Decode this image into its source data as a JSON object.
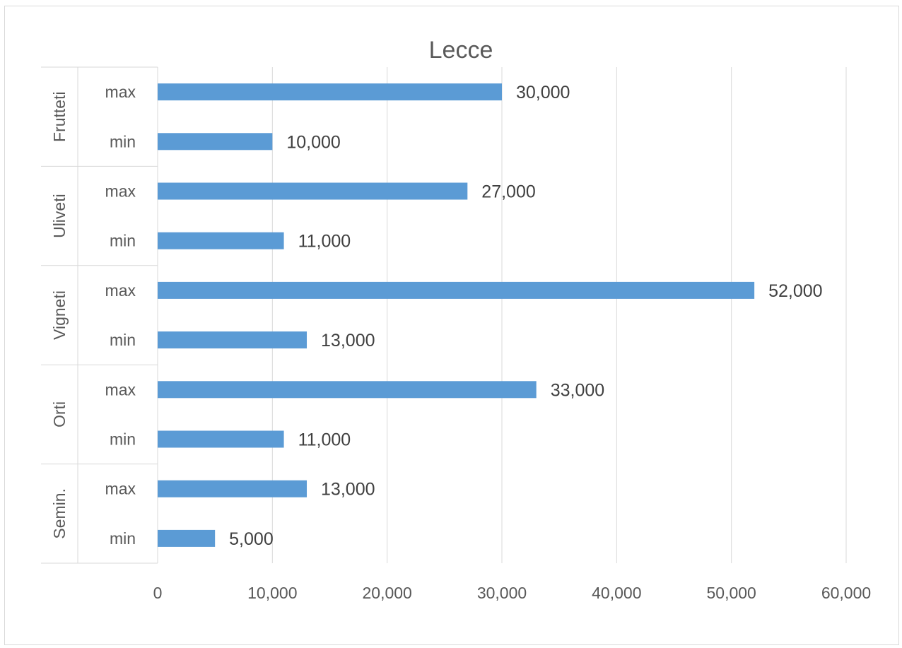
{
  "chart_data": {
    "type": "bar",
    "orientation": "horizontal",
    "title": "Lecce",
    "xlabel": "",
    "ylabel": "",
    "xlim": [
      0,
      60000
    ],
    "x_ticks": [
      "0",
      "10,000",
      "20,000",
      "30,000",
      "40,000",
      "50,000",
      "60,000"
    ],
    "grid": "vertical",
    "legend": "none",
    "bar_color": "#5B9BD5",
    "groups": [
      {
        "name": "Frutteti",
        "rows": [
          {
            "label": "max",
            "value": 30000,
            "display": "30,000"
          },
          {
            "label": "min",
            "value": 10000,
            "display": "10,000"
          }
        ]
      },
      {
        "name": "Uliveti",
        "rows": [
          {
            "label": "max",
            "value": 27000,
            "display": "27,000"
          },
          {
            "label": "min",
            "value": 11000,
            "display": "11,000"
          }
        ]
      },
      {
        "name": "Vigneti",
        "rows": [
          {
            "label": "max",
            "value": 52000,
            "display": "52,000"
          },
          {
            "label": "min",
            "value": 13000,
            "display": "13,000"
          }
        ]
      },
      {
        "name": "Orti",
        "rows": [
          {
            "label": "max",
            "value": 33000,
            "display": "33,000"
          },
          {
            "label": "min",
            "value": 11000,
            "display": "11,000"
          }
        ]
      },
      {
        "name": "Semin.",
        "rows": [
          {
            "label": "max",
            "value": 13000,
            "display": "13,000"
          },
          {
            "label": "min",
            "value": 5000,
            "display": "5,000"
          }
        ]
      }
    ]
  }
}
